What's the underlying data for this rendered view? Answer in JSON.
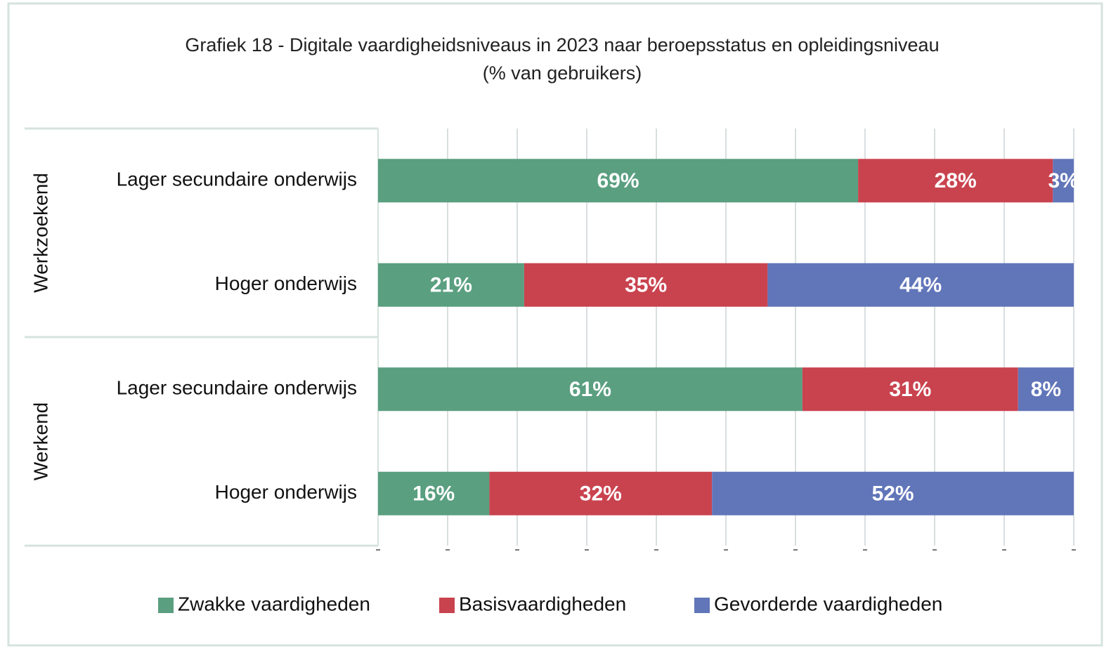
{
  "chart_data": {
    "type": "stacked-barh",
    "title": "Grafiek 18 - Digitale vaardigheidsniveaus in 2023 naar beroepsstatus en opleidingsniveau (% van gebruikers)",
    "groups": [
      "Werkzoekend",
      "Werkend"
    ],
    "categories": [
      "Lager secundaire onderwijs",
      "Hoger onderwijs",
      "Lager secundaire onderwijs",
      "Hoger onderwijs"
    ],
    "series": [
      {
        "name": "Zwakke vaardigheden",
        "color": "#5a9f80",
        "values": [
          69,
          21,
          61,
          16
        ],
        "value_labels": [
          "69%",
          "21%",
          "61%",
          "16%"
        ]
      },
      {
        "name": "Basisvaardigheden",
        "color": "#c9434f",
        "values": [
          28,
          35,
          31,
          32
        ],
        "value_labels": [
          "28%",
          "35%",
          "31%",
          "32%"
        ]
      },
      {
        "name": "Gevorderde vaardigheden",
        "color": "#6175b9",
        "values": [
          3,
          44,
          8,
          52
        ],
        "value_labels": [
          "3%",
          "44%",
          "8%",
          "52%"
        ]
      }
    ],
    "xlim": [
      0,
      100
    ],
    "xticks": [
      0,
      10,
      20,
      30,
      40,
      50,
      60,
      70,
      80,
      90,
      100
    ],
    "grid": true,
    "legend": "bottom"
  }
}
